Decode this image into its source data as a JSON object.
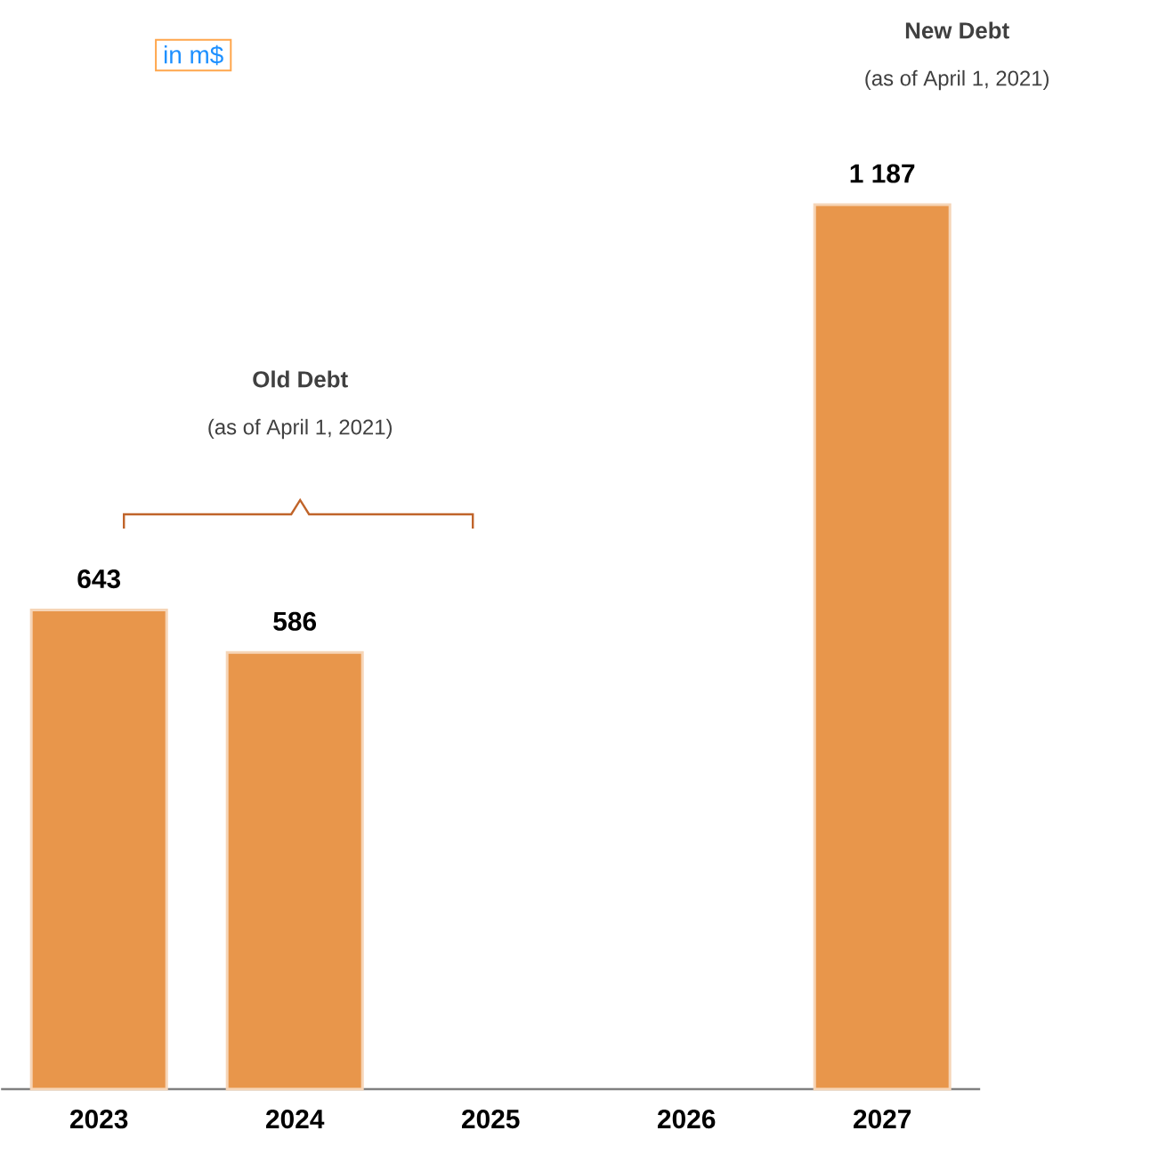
{
  "chart_data": {
    "type": "bar",
    "categories": [
      "2023",
      "2024",
      "2025",
      "2026",
      "2027"
    ],
    "values": [
      643,
      586,
      null,
      null,
      1187
    ],
    "value_labels": [
      "643",
      "586",
      null,
      null,
      "1 187"
    ],
    "color": "#e8964b",
    "annotations": [
      "in m$",
      "Old Debt",
      "(as of April 1, 2021)",
      "New Debt",
      "(as of April 1, 2021)"
    ]
  }
}
